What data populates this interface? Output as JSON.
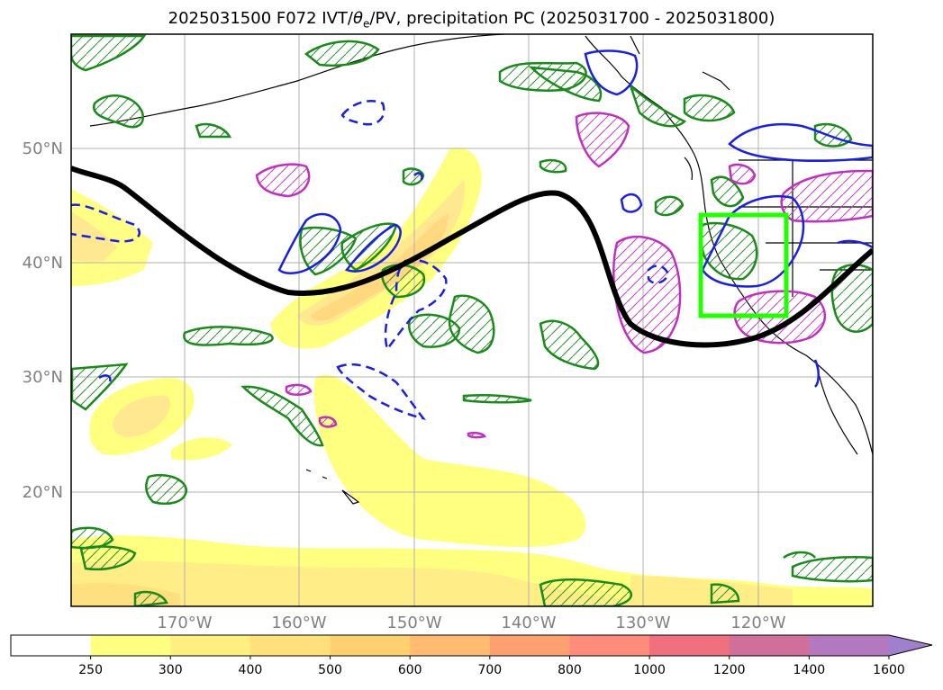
{
  "title": {
    "prefix": "2025031500 F072 IVT/",
    "theta": "θ",
    "theta_sub": "e",
    "suffix": "/PV, precipitation PC (2025031700 - 2025031800)"
  },
  "map": {
    "lon_labels": [
      "170°W",
      "160°W",
      "150°W",
      "140°W",
      "130°W",
      "120°W"
    ],
    "lat_labels": [
      "50°N",
      "40°N",
      "30°N",
      "20°N"
    ],
    "grid": true,
    "projection": "PlateCarree (approx.)",
    "fields": [
      {
        "name": "IVT",
        "rendering": "yellow-orange filled contours"
      },
      {
        "name": "theta_e",
        "rendering": "green hatched contours"
      },
      {
        "name": "PV",
        "rendering": "magenta hatched contours"
      },
      {
        "name": "precipitation PC",
        "rendering": "blue solid/dashed contours"
      },
      {
        "name": "jet / PV line",
        "rendering": "thick black line"
      },
      {
        "name": "target region",
        "rendering": "bright green box"
      }
    ]
  },
  "colorbar": {
    "ticks": [
      "250",
      "300",
      "400",
      "500",
      "600",
      "700",
      "800",
      "1000",
      "1200",
      "1400",
      "1600"
    ],
    "colors": [
      "#ffffff",
      "#ffff80",
      "#ffee80",
      "#ffe07a",
      "#ffd070",
      "#ffbc70",
      "#ffa070",
      "#ff8c7a",
      "#f07080",
      "#d0709a",
      "#b478c0",
      "#a080cc"
    ],
    "extend": "max"
  }
}
